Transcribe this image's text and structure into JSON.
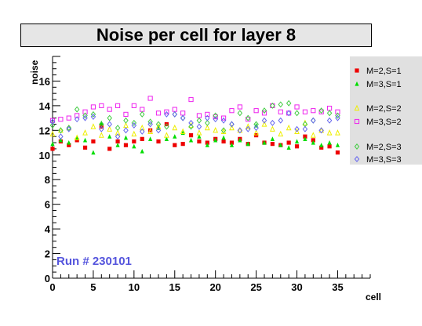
{
  "chart_data": {
    "type": "scatter",
    "title": "Noise per cell for layer 8",
    "xlabel": "cell",
    "ylabel": "noise",
    "xlim": [
      0,
      39
    ],
    "ylim": [
      0,
      18
    ],
    "x_ticks": [
      0,
      5,
      10,
      15,
      20,
      25,
      30,
      35
    ],
    "y_ticks": [
      0,
      2,
      4,
      6,
      8,
      10,
      12,
      14,
      16
    ],
    "grid": false,
    "legend_position": "right",
    "annotation": "Run # 230101",
    "annotation_color": "#5555dd",
    "x": [
      0,
      1,
      2,
      3,
      4,
      5,
      6,
      7,
      8,
      9,
      10,
      11,
      12,
      13,
      14,
      15,
      16,
      17,
      18,
      19,
      20,
      21,
      22,
      23,
      24,
      25,
      26,
      27,
      28,
      29,
      30,
      31,
      32,
      33,
      34,
      35
    ],
    "series": [
      {
        "name": "M=2,S=1",
        "marker": "square-filled",
        "color": "#ee0000",
        "values": [
          10.5,
          11.1,
          10.8,
          11.2,
          10.6,
          11.1,
          12.3,
          10.5,
          11.1,
          10.8,
          11.1,
          11.3,
          12.0,
          11.1,
          12.5,
          10.8,
          10.9,
          11.6,
          11.1,
          11.0,
          11.3,
          11.1,
          11.0,
          11.3,
          10.9,
          11.6,
          11.0,
          10.9,
          10.8,
          11.0,
          10.7,
          11.5,
          11.2,
          10.6,
          10.7,
          10.2
        ]
      },
      {
        "name": "M=3,S=1",
        "marker": "triangle-filled",
        "color": "#00dd00",
        "values": [
          10.9,
          11.2,
          11.0,
          11.4,
          11.2,
          10.2,
          12.6,
          11.5,
          10.8,
          11.4,
          10.7,
          10.3,
          11.3,
          12.2,
          11.3,
          11.5,
          11.8,
          11.2,
          11.5,
          10.8,
          11.2,
          11.4,
          10.8,
          11.2,
          10.9,
          12.4,
          11.0,
          11.3,
          10.8,
          10.6,
          11.1,
          11.3,
          11.0,
          10.8,
          11.0,
          10.8
        ]
      },
      {
        "name": "M=2,S=2",
        "marker": "triangle-open",
        "color": "#eeee00",
        "values": [
          11.7,
          12.0,
          12.2,
          11.4,
          11.8,
          12.3,
          11.6,
          12.1,
          11.8,
          12.4,
          11.7,
          12.2,
          11.9,
          12.3,
          11.6,
          12.2,
          11.9,
          12.4,
          11.8,
          12.2,
          12.0,
          11.9,
          12.2,
          12.0,
          12.3,
          11.8,
          12.5,
          12.1,
          11.7,
          12.2,
          11.9,
          12.6,
          11.6,
          12.0,
          11.8,
          11.8
        ]
      },
      {
        "name": "M=3,S=2",
        "marker": "square-open",
        "color": "#ee22ee",
        "values": [
          12.8,
          12.9,
          13.0,
          13.2,
          13.5,
          13.9,
          14.0,
          13.7,
          14.0,
          13.3,
          14.0,
          13.7,
          14.6,
          13.4,
          13.5,
          13.7,
          13.4,
          14.5,
          13.2,
          13.3,
          13.1,
          13.0,
          13.6,
          13.9,
          12.9,
          13.6,
          13.4,
          14.0,
          13.5,
          13.4,
          13.9,
          13.5,
          13.6,
          13.5,
          13.8,
          13.5
        ]
      },
      {
        "name": "M=2,S=3",
        "marker": "diamond-open",
        "color": "#44cc44",
        "values": [
          12.4,
          12.0,
          12.2,
          13.7,
          13.2,
          13.3,
          12.5,
          13.0,
          12.2,
          12.8,
          12.6,
          13.3,
          12.7,
          12.5,
          12.3,
          13.3,
          13.0,
          12.3,
          12.8,
          12.6,
          13.2,
          12.0,
          12.5,
          13.4,
          13.0,
          12.5,
          13.6,
          14.0,
          14.1,
          14.2,
          13.4,
          12.5,
          12.8,
          13.6,
          13.4,
          13.2
        ]
      },
      {
        "name": "M=3,S=3",
        "marker": "diamond-open",
        "color": "#6666ee",
        "values": [
          12.7,
          11.5,
          12.1,
          12.9,
          13.0,
          13.1,
          12.1,
          12.5,
          11.5,
          12.0,
          12.4,
          11.9,
          12.5,
          12.0,
          13.3,
          13.3,
          13.0,
          12.6,
          12.3,
          13.0,
          12.9,
          12.8,
          12.5,
          12.0,
          12.1,
          12.2,
          12.8,
          12.6,
          12.8,
          13.4,
          12.1,
          12.1,
          12.8,
          12.0,
          12.8,
          13.0
        ]
      }
    ]
  }
}
